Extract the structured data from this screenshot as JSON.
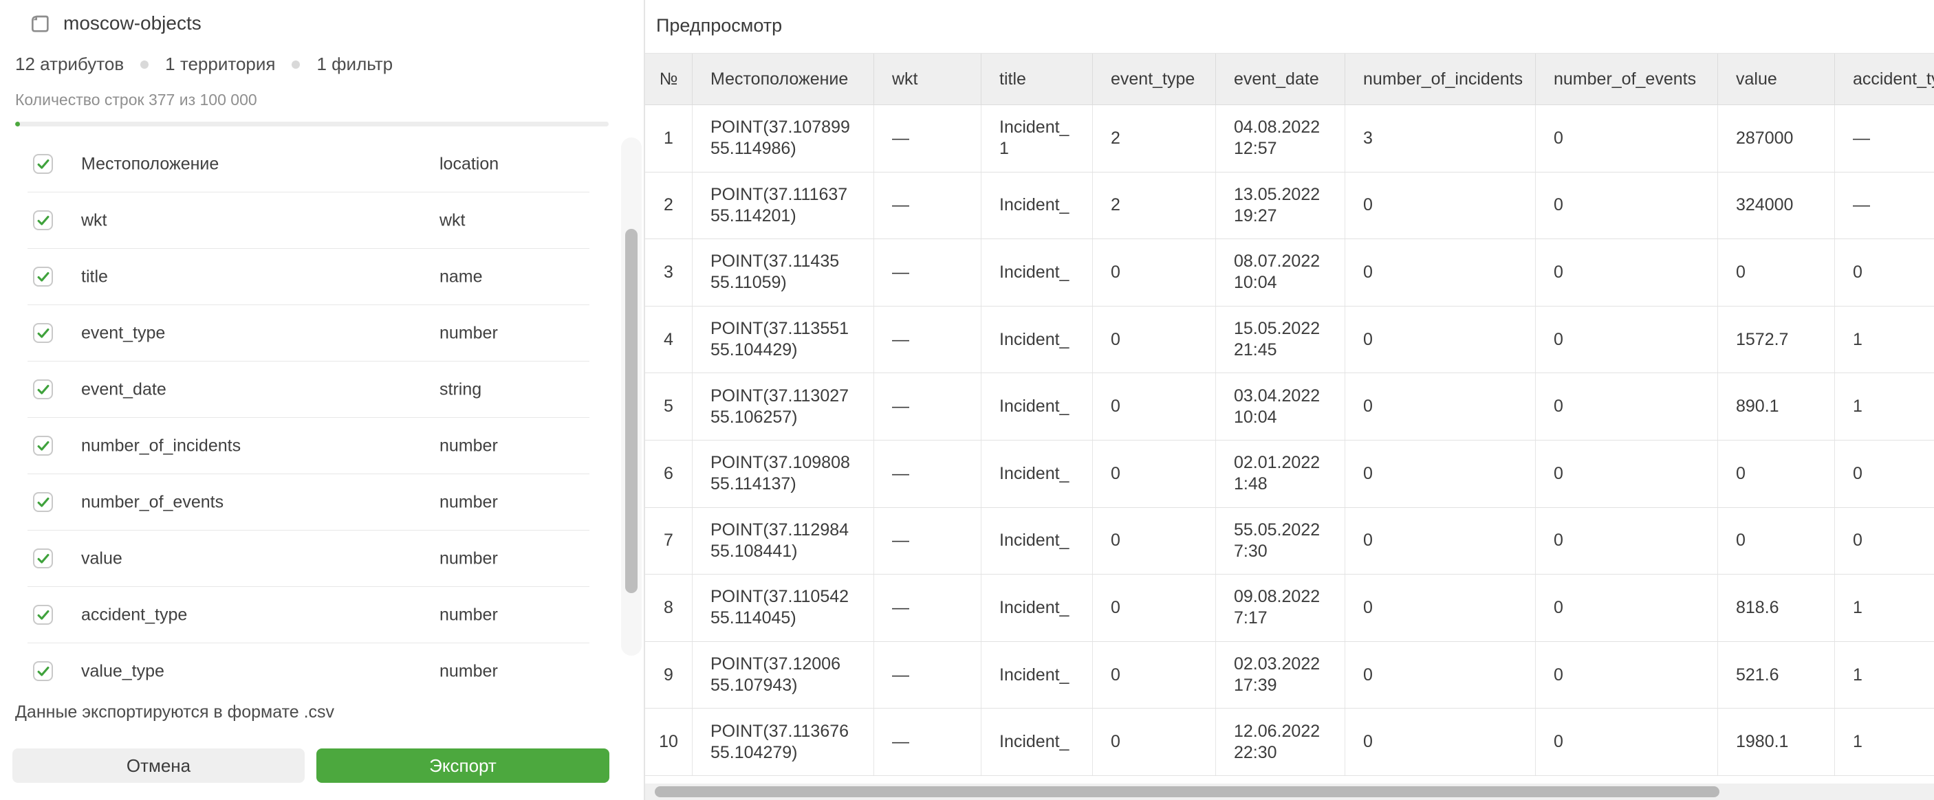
{
  "colors": {
    "accent_green": "#4ca83e",
    "check_green": "#3fa23c",
    "scroll_thumb": "#bdbdbd",
    "table_header_bg": "#efefef"
  },
  "panel": {
    "dataset_title": "moscow-objects",
    "meta_items": [
      "12 атрибутов",
      "1 территория",
      "1 фильтр"
    ],
    "row_count_label": "Количество строк 377 из 100 000",
    "progress_percent": 0.8,
    "attributes": [
      {
        "name": "Местоположение",
        "type": "location",
        "checked": true
      },
      {
        "name": "wkt",
        "type": "wkt",
        "checked": true
      },
      {
        "name": "title",
        "type": "name",
        "checked": true
      },
      {
        "name": "event_type",
        "type": "number",
        "checked": true
      },
      {
        "name": "event_date",
        "type": "string",
        "checked": true
      },
      {
        "name": "number_of_incidents",
        "type": "number",
        "checked": true
      },
      {
        "name": "number_of_events",
        "type": "number",
        "checked": true
      },
      {
        "name": "value",
        "type": "number",
        "checked": true
      },
      {
        "name": "accident_type",
        "type": "number",
        "checked": true
      },
      {
        "name": "value_type",
        "type": "number",
        "checked": true
      }
    ],
    "export_note": "Данные экспортируются в формате .csv",
    "cancel_label": "Отмена",
    "export_label": "Экспорт"
  },
  "preview": {
    "title": "Предпросмотр",
    "columns": [
      "№",
      "Местоположение",
      "wkt",
      "title",
      "event_type",
      "event_date",
      "number_of_incidents",
      "number_of_events",
      "value",
      "accident_type"
    ],
    "rows": [
      [
        "1",
        "POINT(37.107899\n55.114986)",
        "—",
        "Incident_\n1",
        "2",
        "04.08.2022\n12:57",
        "3",
        "0",
        "287000",
        "—"
      ],
      [
        "2",
        "POINT(37.111637\n55.114201)",
        "—",
        "Incident_",
        "2",
        "13.05.2022\n19:27",
        "0",
        "0",
        "324000",
        "—"
      ],
      [
        "3",
        "POINT(37.11435\n55.11059)",
        "—",
        "Incident_",
        "0",
        "08.07.2022\n10:04",
        "0",
        "0",
        "0",
        "0"
      ],
      [
        "4",
        "POINT(37.113551\n55.104429)",
        "—",
        "Incident_",
        "0",
        "15.05.2022\n21:45",
        "0",
        "0",
        "1572.7",
        "1"
      ],
      [
        "5",
        "POINT(37.113027\n55.106257)",
        "—",
        "Incident_",
        "0",
        "03.04.2022\n10:04",
        "0",
        "0",
        "890.1",
        "1"
      ],
      [
        "6",
        "POINT(37.109808\n55.114137)",
        "—",
        "Incident_",
        "0",
        "02.01.2022\n1:48",
        "0",
        "0",
        "0",
        "0"
      ],
      [
        "7",
        "POINT(37.112984\n55.108441)",
        "—",
        "Incident_",
        "0",
        "55.05.2022\n7:30",
        "0",
        "0",
        "0",
        "0"
      ],
      [
        "8",
        "POINT(37.110542\n55.114045)",
        "—",
        "Incident_",
        "0",
        "09.08.2022\n7:17",
        "0",
        "0",
        "818.6",
        "1"
      ],
      [
        "9",
        "POINT(37.12006\n55.107943)",
        "—",
        "Incident_",
        "0",
        "02.03.2022\n17:39",
        "0",
        "0",
        "521.6",
        "1"
      ],
      [
        "10",
        "POINT(37.113676\n55.104279)",
        "—",
        "Incident_",
        "0",
        "12.06.2022\n22:30",
        "0",
        "0",
        "1980.1",
        "1"
      ]
    ]
  }
}
